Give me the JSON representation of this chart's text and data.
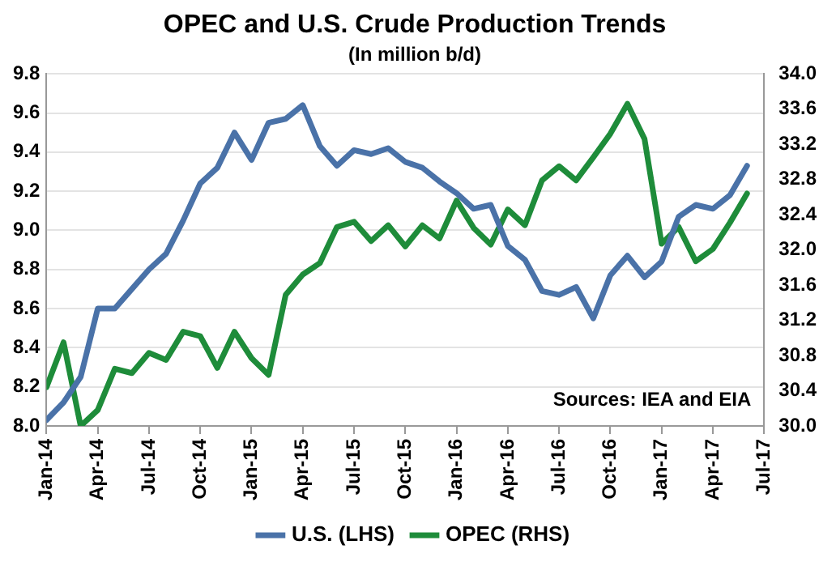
{
  "chart_data": {
    "type": "line",
    "title": "OPEC and U.S. Crude Production Trends",
    "subtitle": "(In million b/d)",
    "annotations": [
      "Sources: IEA and EIA"
    ],
    "x": [
      "2014-01",
      "2014-02",
      "2014-03",
      "2014-04",
      "2014-05",
      "2014-06",
      "2014-07",
      "2014-08",
      "2014-09",
      "2014-10",
      "2014-11",
      "2014-12",
      "2015-01",
      "2015-02",
      "2015-03",
      "2015-04",
      "2015-05",
      "2015-06",
      "2015-07",
      "2015-08",
      "2015-09",
      "2015-10",
      "2015-11",
      "2015-12",
      "2016-01",
      "2016-02",
      "2016-03",
      "2016-04",
      "2016-05",
      "2016-06",
      "2016-07",
      "2016-08",
      "2016-09",
      "2016-10",
      "2016-11",
      "2016-12",
      "2017-01",
      "2017-02",
      "2017-03",
      "2017-04",
      "2017-05",
      "2017-06"
    ],
    "series": [
      {
        "name": "U.S. (LHS)",
        "color": "#4a72a8",
        "axis": "y",
        "values": [
          8.03,
          8.12,
          8.25,
          8.6,
          8.6,
          8.7,
          8.8,
          8.88,
          9.05,
          9.24,
          9.32,
          9.5,
          9.36,
          9.55,
          9.57,
          9.64,
          9.43,
          9.33,
          9.41,
          9.39,
          9.42,
          9.35,
          9.32,
          9.25,
          9.19,
          9.11,
          9.13,
          8.92,
          8.85,
          8.69,
          8.67,
          8.71,
          8.55,
          8.77,
          8.87,
          8.76,
          8.84,
          9.07,
          9.13,
          9.11,
          9.18,
          9.33
        ]
      },
      {
        "name": "OPEC (RHS)",
        "color": "#1e8c3a",
        "axis": "y2",
        "values": [
          30.44,
          30.95,
          30.0,
          30.18,
          30.65,
          30.6,
          30.83,
          30.75,
          31.07,
          31.02,
          30.66,
          31.07,
          30.77,
          30.58,
          31.49,
          31.72,
          31.85,
          32.26,
          32.32,
          32.1,
          32.28,
          32.04,
          32.28,
          32.13,
          32.56,
          32.25,
          32.06,
          32.46,
          32.28,
          32.79,
          32.95,
          32.79,
          33.05,
          33.32,
          33.66,
          33.26,
          32.07,
          32.26,
          31.87,
          32.01,
          32.31,
          32.64
        ]
      }
    ],
    "xlim": [
      "2014-01",
      "2017-07"
    ],
    "xticks": [
      {
        "value": "2014-01",
        "label": "Jan-14"
      },
      {
        "value": "2014-04",
        "label": "Apr-14"
      },
      {
        "value": "2014-07",
        "label": "Jul-14"
      },
      {
        "value": "2014-10",
        "label": "Oct-14"
      },
      {
        "value": "2015-01",
        "label": "Jan-15"
      },
      {
        "value": "2015-04",
        "label": "Apr-15"
      },
      {
        "value": "2015-07",
        "label": "Jul-15"
      },
      {
        "value": "2015-10",
        "label": "Oct-15"
      },
      {
        "value": "2016-01",
        "label": "Jan-16"
      },
      {
        "value": "2016-04",
        "label": "Apr-16"
      },
      {
        "value": "2016-07",
        "label": "Jul-16"
      },
      {
        "value": "2016-10",
        "label": "Oct-16"
      },
      {
        "value": "2017-01",
        "label": "Jan-17"
      },
      {
        "value": "2017-04",
        "label": "Apr-17"
      },
      {
        "value": "2017-07",
        "label": "Jul-17"
      }
    ],
    "ylim": [
      8.0,
      9.8
    ],
    "yticks": [
      {
        "value": 8,
        "label": "8.0"
      },
      8.2,
      8.4,
      8.6,
      8.8,
      {
        "value": 9,
        "label": "9.0"
      },
      9.2,
      9.4,
      9.6,
      9.8
    ],
    "y2lim": [
      30,
      34
    ],
    "y2ticks": [
      {
        "value": 30,
        "label": "30.0"
      },
      30.4,
      30.8,
      31.2,
      31.6,
      {
        "value": 32,
        "label": "32.0"
      },
      32.4,
      32.8,
      33.2,
      33.6,
      {
        "value": 34,
        "label": "34.0"
      }
    ],
    "grid": "y",
    "legend": "bottom",
    "marker": "none",
    "line_style": "solid"
  }
}
